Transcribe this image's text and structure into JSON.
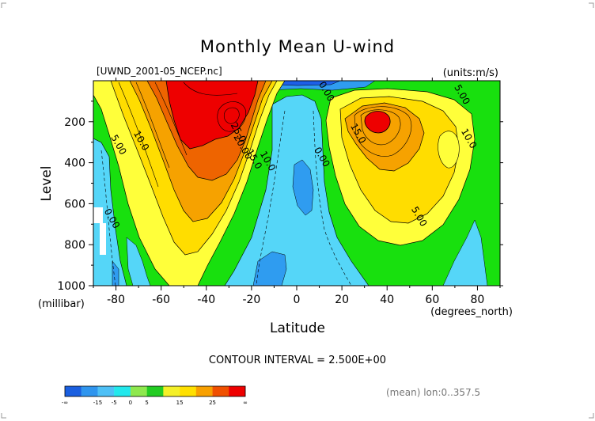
{
  "title": "Monthly Mean U-wind",
  "source_file": "[UWND_2001-05_NCEP.nc]",
  "units_label": "(units:m/s)",
  "contour_interval": "CONTOUR INTERVAL = 2.500E+00",
  "mean_note": "(mean) lon:0..357.5",
  "chart_data": {
    "type": "heatmap",
    "title": "Monthly Mean U-wind",
    "xlabel": "Latitude",
    "x_units": "(degrees_north)",
    "ylabel": "Level",
    "y_units": "(millibar)",
    "xlim": [
      -90,
      90
    ],
    "ylim": [
      1000,
      0
    ],
    "x_ticks": [
      "-80",
      "-60",
      "-40",
      "-20",
      "0",
      "20",
      "40",
      "60",
      "80"
    ],
    "x_tick_values": [
      -80,
      -60,
      -40,
      -20,
      0,
      20,
      40,
      60,
      80
    ],
    "y_ticks": [
      "200",
      "400",
      "600",
      "800",
      "1000"
    ],
    "y_tick_values": [
      200,
      400,
      600,
      800,
      1000
    ],
    "contour_labels": [
      {
        "text": "0.00",
        "lat": 12,
        "lev": 60
      },
      {
        "text": "5.00",
        "lat": 72,
        "lev": 75
      },
      {
        "text": "25.0",
        "lat": -27,
        "lev": 260
      },
      {
        "text": "20.00",
        "lat": -25,
        "lev": 330
      },
      {
        "text": "15.0",
        "lat": -20,
        "lev": 390
      },
      {
        "text": "10.0",
        "lat": -14,
        "lev": 400
      },
      {
        "text": "10.0",
        "lat": -70,
        "lev": 300
      },
      {
        "text": "5.00",
        "lat": -80,
        "lev": 320
      },
      {
        "text": "15.0",
        "lat": 26,
        "lev": 265
      },
      {
        "text": "0.00",
        "lat": 10,
        "lev": 380
      },
      {
        "text": "10.0",
        "lat": 75,
        "lev": 290
      },
      {
        "text": "0.00",
        "lat": -83,
        "lev": 680
      },
      {
        "text": "5.00",
        "lat": 53,
        "lev": 670
      }
    ],
    "colorbar": {
      "labels": [
        "-∞",
        "-15",
        "-5",
        "0",
        "5",
        "15",
        "25",
        "∞"
      ],
      "colors": [
        "#1a5fe0",
        "#2f95ee",
        "#4ec0f6",
        "#22e8ec",
        "#8ee84e",
        "#22cc22",
        "#f4f028",
        "#ffe000",
        "#f8a000",
        "#f05000",
        "#ee0000"
      ]
    },
    "palette": {
      "neg10": "#1d5fe8",
      "neg5": "#2f9cf0",
      "neg0": "#55d6f8",
      "pos0": "#18e00e",
      "pos5": "#ffff3a",
      "pos10": "#ffdd00",
      "pos15": "#f6a200",
      "pos20": "#ee6400",
      "pos25": "#ee0000"
    }
  }
}
